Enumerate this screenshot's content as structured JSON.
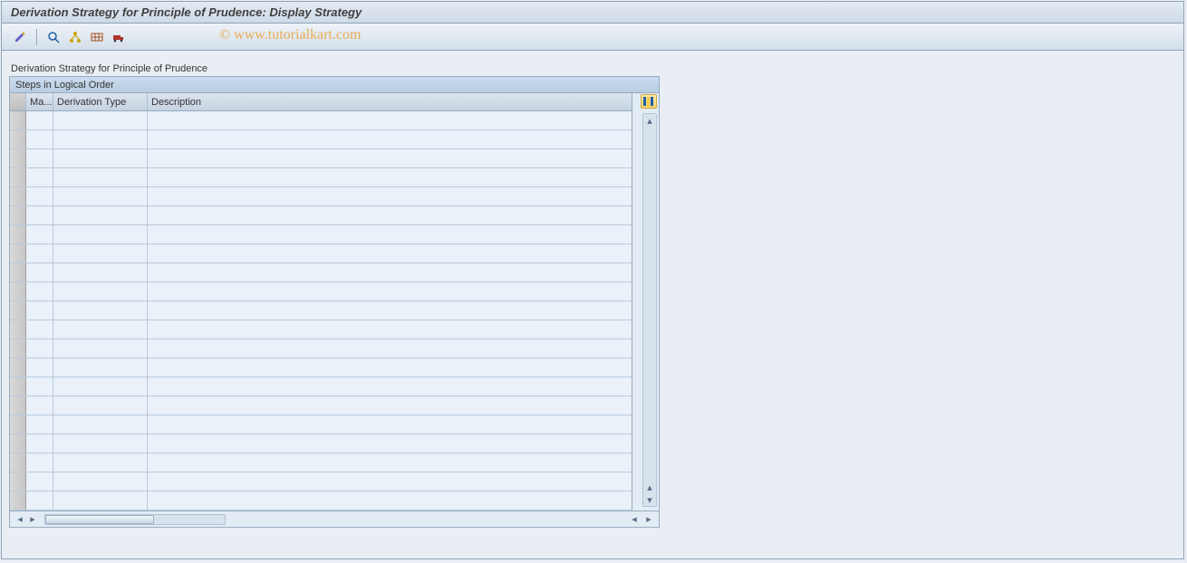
{
  "title": "Derivation Strategy for Principle of Prudence: Display Strategy",
  "watermark": "© www.tutorialkart.com",
  "toolbar": {
    "icons": [
      {
        "name": "change-icon",
        "color": "#6a5acd"
      },
      {
        "name": "detail-icon",
        "color": "#1e5fa9"
      },
      {
        "name": "hierarchy-icon",
        "color": "#caa400"
      },
      {
        "name": "table-icon",
        "color": "#a94f1e"
      },
      {
        "name": "transport-icon",
        "color": "#b0362b"
      }
    ]
  },
  "section_label": "Derivation Strategy for Principle of Prudence",
  "panel_header": "Steps in Logical Order",
  "columns": {
    "ma": "Ma...",
    "type": "Derivation Type",
    "desc": "Description"
  },
  "rows": 21,
  "colors": {
    "window_bg": "#e9eef4",
    "panel_border": "#97acc2",
    "grid_row_bg": "#eaf1f8",
    "grid_line": "#b8cadd",
    "header_grad_top": "#dbe4ee",
    "header_grad_bot": "#c6d3e1",
    "title_text": "#40403f"
  }
}
